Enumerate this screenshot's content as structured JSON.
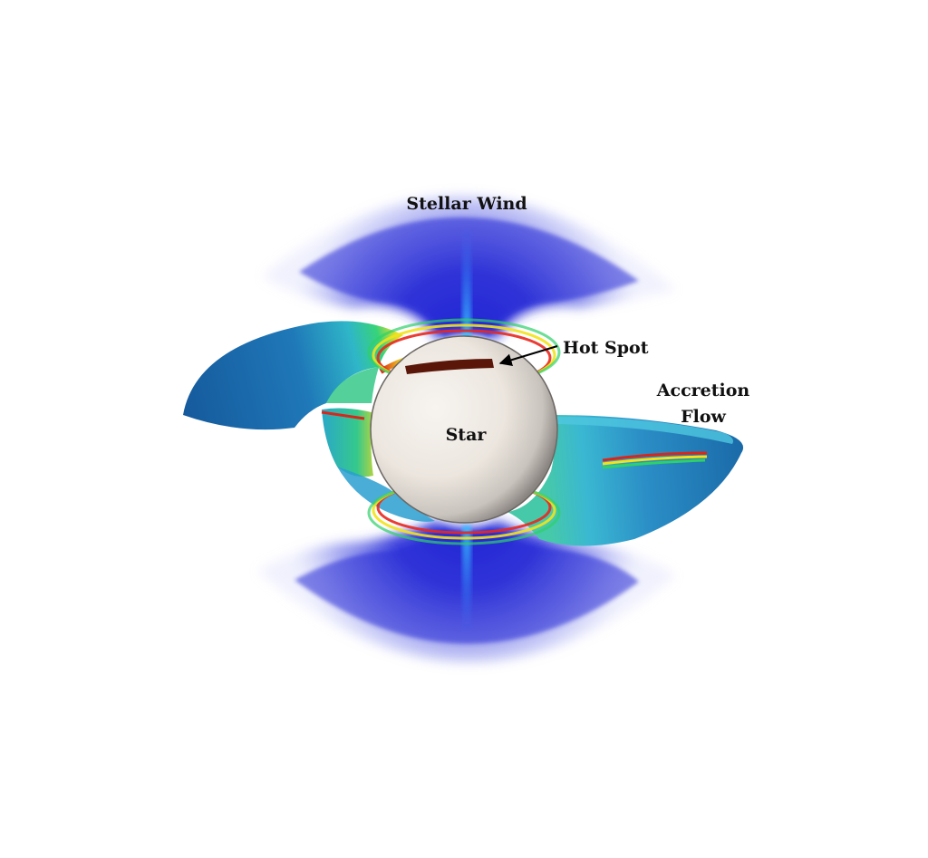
{
  "labels": {
    "stellar_wind": "Stellar Wind",
    "hot_spot": "Hot Spot",
    "accretion_line1": "Accretion",
    "accretion_line2": "Flow",
    "star": "Star"
  },
  "colors": {
    "background": "#ffffff",
    "wind_blue": "#2a2fd8",
    "wind_pale": "#b8bdf5",
    "accretion_blue": "#1e6fb3",
    "accretion_cyan": "#3fb8d6",
    "accretion_green": "#2fd06a",
    "accretion_yellow": "#f2e21c",
    "accretion_red": "#e8281e",
    "hot_spot": "#5a1608",
    "star_surface": "#efeae4",
    "star_shadow": "#8f8a86",
    "arrow": "#000000"
  }
}
